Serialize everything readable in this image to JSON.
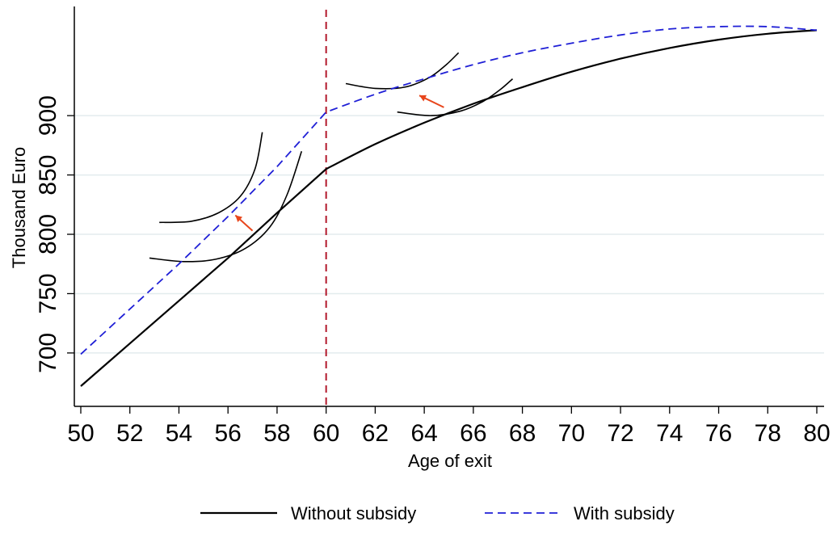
{
  "chart_data": {
    "type": "line",
    "xlabel": "Age of exit",
    "ylabel": "Thousand Euro",
    "xlim": [
      50,
      80
    ],
    "ylim": [
      655,
      992
    ],
    "x_ticks": [
      50,
      52,
      54,
      56,
      58,
      60,
      62,
      64,
      66,
      68,
      70,
      72,
      74,
      76,
      78,
      80
    ],
    "y_ticks": [
      700,
      750,
      800,
      850,
      900
    ],
    "grid": "horizontal",
    "legend_position": "bottom",
    "reference_line": {
      "x": 60,
      "style": "dashed",
      "color": "#b2182b"
    },
    "series": [
      {
        "name": "Without subsidy",
        "color": "#000000",
        "style": "solid",
        "x": [
          50,
          52,
          54,
          56,
          58,
          60,
          62,
          64,
          66,
          68,
          70,
          72,
          74,
          76,
          78,
          80
        ],
        "y": [
          672,
          708,
          744,
          780,
          818,
          855,
          876,
          894,
          910,
          924,
          937,
          948,
          957,
          964,
          969,
          972
        ]
      },
      {
        "name": "With subsidy",
        "color": "#1f1fd6",
        "style": "dashed",
        "x": [
          50,
          52,
          54,
          56,
          58,
          60,
          62,
          64,
          66,
          68,
          70,
          72,
          74,
          76,
          78,
          80
        ],
        "y": [
          699,
          737,
          775,
          815,
          857,
          903,
          918,
          931,
          943,
          953,
          961,
          968,
          973,
          975,
          975,
          972
        ]
      }
    ],
    "indifference_curves": [
      {
        "color": "#000000",
        "x": [
          53.2,
          54.5,
          55.6,
          56.5,
          57.1,
          57.4
        ],
        "y": [
          810,
          811,
          818,
          832,
          855,
          886
        ]
      },
      {
        "color": "#000000",
        "x": [
          52.8,
          54.2,
          55.5,
          56.7,
          57.7,
          58.4,
          59.0
        ],
        "y": [
          780,
          777,
          779,
          788,
          806,
          833,
          870
        ]
      },
      {
        "color": "#000000",
        "x": [
          60.8,
          62.0,
          63.2,
          64.2,
          64.9,
          65.4
        ],
        "y": [
          927,
          923,
          924,
          932,
          943,
          953
        ]
      },
      {
        "color": "#000000",
        "x": [
          62.9,
          64.3,
          65.5,
          66.4,
          67.1,
          67.6
        ],
        "y": [
          903,
          900,
          904,
          912,
          922,
          931
        ]
      }
    ],
    "arrows": [
      {
        "color": "#e8461c",
        "from": [
          57.0,
          803
        ],
        "to": [
          56.3,
          816
        ]
      },
      {
        "color": "#e8461c",
        "from": [
          64.8,
          907
        ],
        "to": [
          63.8,
          917
        ]
      }
    ]
  }
}
